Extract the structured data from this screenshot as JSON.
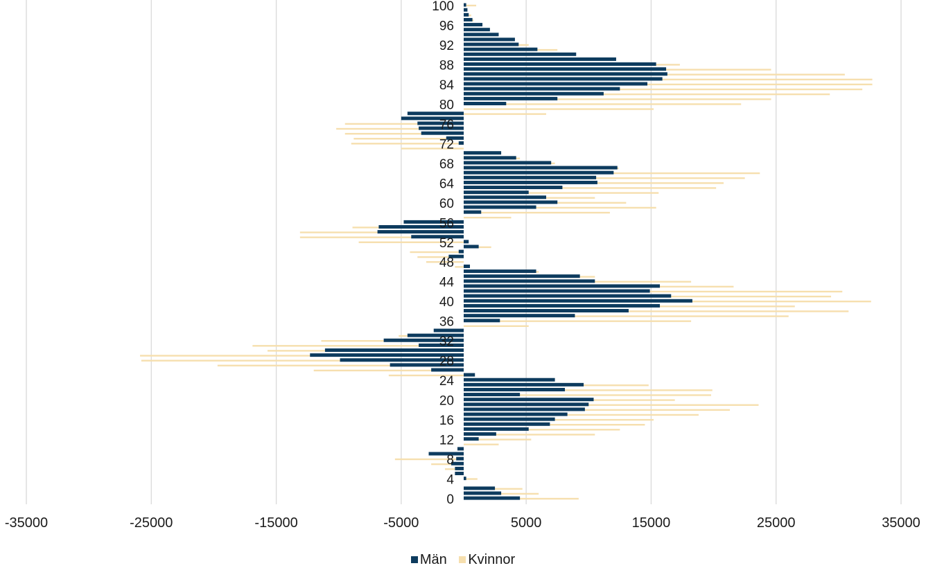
{
  "chart_data": {
    "type": "bar",
    "orientation": "horizontal",
    "title": "",
    "xlabel": "",
    "ylabel": "",
    "xlim": [
      -35000,
      35000
    ],
    "xticks": [
      -35000,
      -25000,
      -15000,
      -5000,
      5000,
      15000,
      25000,
      35000
    ],
    "yticks": [
      0,
      4,
      8,
      12,
      16,
      20,
      24,
      28,
      32,
      36,
      40,
      44,
      48,
      52,
      56,
      60,
      64,
      68,
      72,
      76,
      80,
      84,
      88,
      92,
      96,
      100
    ],
    "grid": "vertical",
    "legend": "bottom",
    "categories": [
      0,
      1,
      2,
      3,
      4,
      5,
      6,
      7,
      8,
      9,
      10,
      11,
      12,
      13,
      14,
      15,
      16,
      17,
      18,
      19,
      20,
      21,
      22,
      23,
      24,
      25,
      26,
      27,
      28,
      29,
      30,
      31,
      32,
      33,
      34,
      35,
      36,
      37,
      38,
      39,
      40,
      41,
      42,
      43,
      44,
      45,
      46,
      47,
      48,
      49,
      50,
      51,
      52,
      53,
      54,
      55,
      56,
      57,
      58,
      59,
      60,
      61,
      62,
      63,
      64,
      65,
      66,
      67,
      68,
      69,
      70,
      71,
      72,
      73,
      74,
      75,
      76,
      77,
      78,
      79,
      80,
      81,
      82,
      83,
      84,
      85,
      86,
      87,
      88,
      89,
      90,
      91,
      92,
      93,
      94,
      95,
      96,
      97,
      98,
      99,
      100
    ],
    "series": [
      {
        "name": "Män",
        "color": "#0d3b5e",
        "values": [
          4500,
          3000,
          2500,
          0,
          200,
          -700,
          -700,
          -1000,
          -600,
          -2800,
          -500,
          0,
          1200,
          2600,
          5200,
          6900,
          7300,
          8300,
          9700,
          10000,
          10400,
          4500,
          8100,
          9600,
          7300,
          900,
          -2600,
          -5900,
          -9900,
          -12300,
          -11100,
          -3600,
          -6400,
          -4500,
          -2400,
          0,
          2900,
          8900,
          13200,
          15700,
          18300,
          16600,
          14900,
          15700,
          10500,
          9300,
          5800,
          500,
          0,
          -1200,
          -400,
          1200,
          400,
          -4200,
          -6900,
          -6800,
          -4800,
          0,
          1400,
          5800,
          7500,
          6600,
          5200,
          7900,
          10700,
          10600,
          12000,
          12300,
          7000,
          4200,
          3000,
          0,
          -400,
          -1400,
          -3400,
          -3600,
          -3700,
          -5000,
          -4500,
          0,
          3400,
          7500,
          11200,
          12500,
          14700,
          15900,
          16300,
          16200,
          15400,
          12200,
          9000,
          5900,
          4400,
          4100,
          2800,
          2100,
          1500,
          700,
          400,
          300,
          200
        ]
      },
      {
        "name": "Kvinnor",
        "color": "#f6dfae",
        "values": [
          9200,
          6000,
          4700,
          0,
          1100,
          0,
          -1500,
          -2600,
          -5500,
          -1000,
          0,
          2800,
          5400,
          10500,
          12500,
          14500,
          15200,
          18800,
          21300,
          23600,
          16900,
          19800,
          19900,
          14800,
          3000,
          -6000,
          -12000,
          -19700,
          -25800,
          -25900,
          -15700,
          -16900,
          -11400,
          -5200,
          0,
          5200,
          18200,
          26000,
          30800,
          26500,
          32600,
          29400,
          30300,
          21600,
          18200,
          10500,
          6000,
          -700,
          -3000,
          -3700,
          -4300,
          2200,
          -8400,
          -13100,
          -13100,
          -8900,
          -3000,
          3800,
          11700,
          15400,
          13000,
          10500,
          15600,
          20200,
          20800,
          22500,
          23700,
          12400,
          7300,
          4500,
          0,
          -5000,
          -9000,
          -8800,
          -9500,
          -10200,
          -9500,
          -400,
          6600,
          15200,
          22200,
          24600,
          29300,
          31900,
          32700,
          32700,
          30500,
          24600,
          17300,
          10500,
          7500,
          7500,
          5200,
          3600,
          2500,
          1600,
          900,
          800,
          600,
          300,
          1000
        ]
      }
    ]
  }
}
